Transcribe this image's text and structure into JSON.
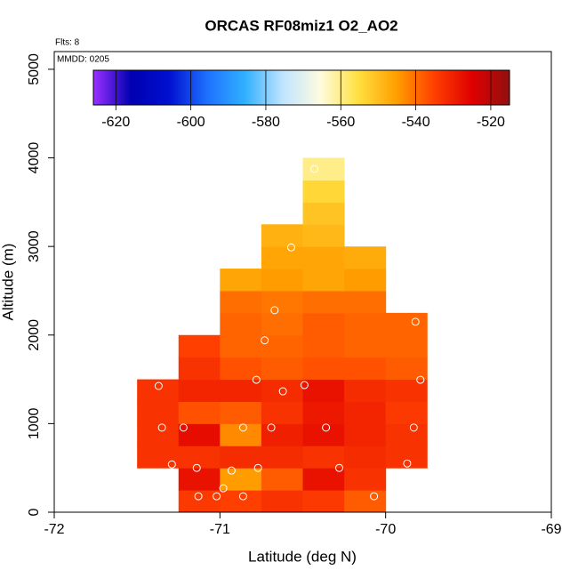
{
  "chart_data": {
    "type": "heatmap",
    "title": "ORCAS RF08miz1 O2_AO2",
    "subtitle": "Flts: 8",
    "annotation": "MMDD: 0205",
    "x_label": "Latitude (deg N)",
    "y_label": "Altitude (m)",
    "xlim": [
      -72,
      -69
    ],
    "ylim": [
      0,
      5200
    ],
    "xticks": [
      -72,
      -71,
      -70,
      -69
    ],
    "yticks": [
      0,
      1000,
      2000,
      3000,
      4000,
      5000
    ],
    "cell_size": [
      0.25,
      250
    ],
    "rows": [
      {
        "y": 0,
        "x": [
          -71.25,
          -71,
          -70.75,
          -70.5,
          -70.25
        ],
        "values": [
          -534,
          -535,
          -533,
          -534,
          -538
        ]
      },
      {
        "y": 250,
        "x": [
          -71.25,
          -71,
          -70.75,
          -70.5,
          -70.25
        ],
        "values": [
          -528,
          -545,
          -538,
          -528,
          -533
        ]
      },
      {
        "y": 500,
        "x": [
          -71.5,
          -71.25,
          -71,
          -70.75,
          -70.5,
          -70.25,
          -70
        ],
        "values": [
          -533,
          -533,
          -532,
          -532,
          -533,
          -532,
          -533
        ]
      },
      {
        "y": 750,
        "x": [
          -71.5,
          -71.25,
          -71,
          -70.75,
          -70.5,
          -70.25,
          -70
        ],
        "values": [
          -533,
          -527,
          -543,
          -530,
          -528,
          -531,
          -533
        ]
      },
      {
        "y": 1000,
        "x": [
          -71.5,
          -71.25,
          -71,
          -70.75,
          -70.5,
          -70.25,
          -70
        ],
        "values": [
          -533,
          -537,
          -538,
          -533,
          -529,
          -531,
          -534
        ]
      },
      {
        "y": 1250,
        "x": [
          -71.5,
          -71.25,
          -71,
          -70.75,
          -70.5,
          -70.25,
          -70
        ],
        "values": [
          -533,
          -531,
          -531,
          -532,
          -528,
          -532,
          -533
        ]
      },
      {
        "y": 1500,
        "x": [
          -71.25,
          -71,
          -70.75,
          -70.5,
          -70.25,
          -70
        ],
        "values": [
          -533,
          -537,
          -538,
          -537,
          -537,
          -538
        ]
      },
      {
        "y": 1750,
        "x": [
          -71.25,
          -71,
          -70.75,
          -70.5,
          -70.25,
          -70
        ],
        "values": [
          -535,
          -539,
          -539,
          -538,
          -539,
          -539
        ]
      },
      {
        "y": 2000,
        "x": [
          -71,
          -70.75,
          -70.5,
          -70.25,
          -70
        ],
        "values": [
          -539,
          -540,
          -538,
          -539,
          -539
        ]
      },
      {
        "y": 2250,
        "x": [
          -71,
          -70.75,
          -70.5,
          -70.25
        ],
        "values": [
          -540,
          -541,
          -540,
          -540
        ]
      },
      {
        "y": 2500,
        "x": [
          -71,
          -70.75,
          -70.5,
          -70.25
        ],
        "values": [
          -546,
          -545,
          -546,
          -545
        ]
      },
      {
        "y": 2750,
        "x": [
          -70.75,
          -70.5,
          -70.25
        ],
        "values": [
          -546,
          -546,
          -547
        ]
      },
      {
        "y": 3000,
        "x": [
          -70.75,
          -70.5
        ],
        "values": [
          -548,
          -549
        ]
      },
      {
        "y": 3250,
        "x": [
          -70.5
        ],
        "values": [
          -551
        ]
      },
      {
        "y": 3500,
        "x": [
          -70.5
        ],
        "values": [
          -554
        ]
      },
      {
        "y": 3750,
        "x": [
          -70.5
        ],
        "values": [
          -560
        ]
      }
    ],
    "points": {
      "x": [
        -70.43,
        -70.57,
        -70.67,
        -70.73,
        -69.82,
        -71.37,
        -70.78,
        -70.62,
        -70.49,
        -69.79,
        -71.35,
        -71.22,
        -70.86,
        -70.69,
        -70.36,
        -69.83,
        -71.29,
        -71.14,
        -70.93,
        -70.77,
        -70.28,
        -69.87,
        -71.13,
        -71.02,
        -70.98,
        -70.86,
        -70.07
      ],
      "y": [
        3875,
        2990,
        2280,
        1940,
        2150,
        1425,
        1495,
        1365,
        1435,
        1495,
        955,
        955,
        955,
        955,
        955,
        955,
        540,
        500,
        470,
        500,
        500,
        550,
        180,
        180,
        270,
        180,
        180
      ],
      "color": "#ffffff"
    },
    "colorbar": {
      "lim": [
        -626,
        -515
      ],
      "ticks": [
        -620,
        -600,
        -580,
        -560,
        -540,
        -520
      ],
      "colors": [
        "#9b30ff",
        "#0000b0",
        "#0010d0",
        "#1e70ff",
        "#30b0ff",
        "#bfe4ff",
        "#fffce0",
        "#ffe040",
        "#ffa000",
        "#ff4000",
        "#e00000",
        "#901010"
      ]
    }
  }
}
